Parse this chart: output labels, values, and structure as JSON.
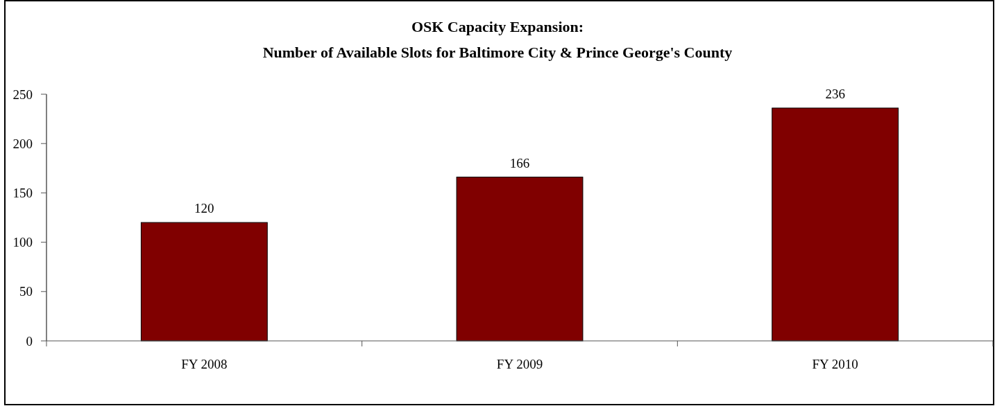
{
  "chart_data": {
    "type": "bar",
    "title": "OSK Capacity Expansion:\nNumber of Available Slots for Baltimore City & Prince George's County",
    "categories": [
      "FY 2008",
      "FY 2009",
      "FY 2010"
    ],
    "values": [
      120,
      166,
      236
    ],
    "color": "#800000",
    "ylim": [
      0,
      250
    ],
    "yticks": [
      0,
      50,
      100,
      150,
      200,
      250
    ],
    "grid": false,
    "data_labels": true
  }
}
